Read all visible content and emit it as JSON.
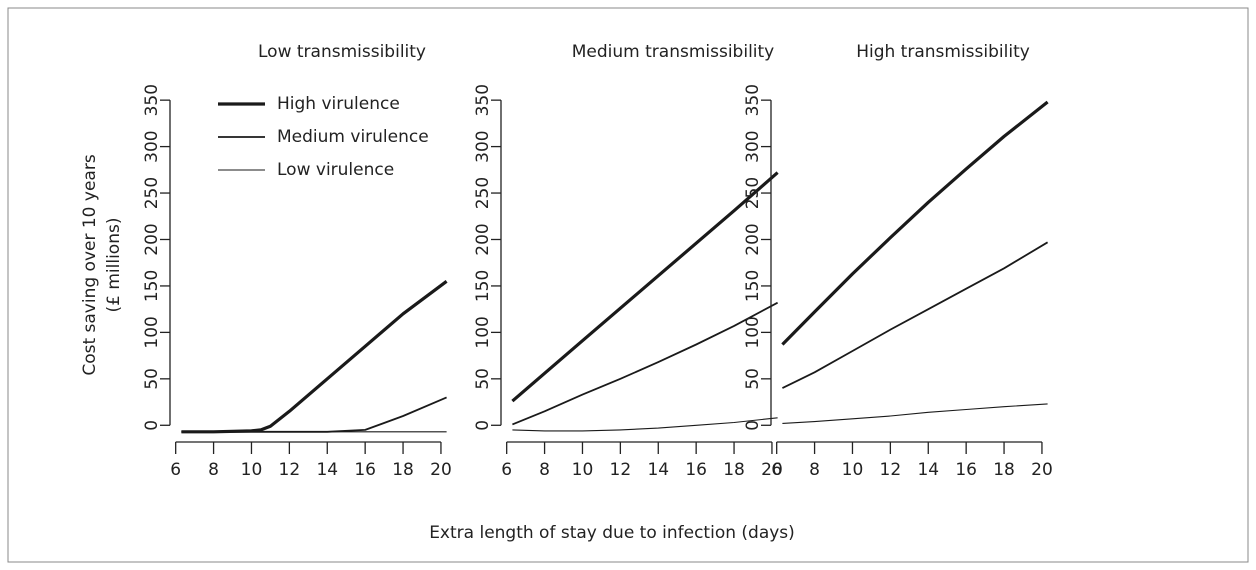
{
  "xlabel": "Extra length of stay due to infection (days)",
  "chart_data": [
    {
      "type": "line",
      "title": "Low transmissibility",
      "ylabel": [
        "Cost saving over 10 years",
        "(£ millions)"
      ],
      "legend": "top-left",
      "x": [
        6.3,
        8,
        10,
        10.5,
        11,
        12,
        14,
        16,
        18,
        20.3
      ],
      "series": [
        {
          "name": "High virulence",
          "color": "#1a1a1a",
          "width": 3.2,
          "values": [
            -7,
            -7,
            -6,
            -5,
            -1,
            15,
            50,
            85,
            120,
            155
          ]
        },
        {
          "name": "Medium virulence",
          "color": "#1a1a1a",
          "width": 1.8,
          "values": [
            -7,
            -7,
            -7,
            -7,
            -7,
            -7,
            -7,
            -5,
            10,
            30
          ]
        },
        {
          "name": "Low virulence",
          "color": "#1a1a1a",
          "width": 1.1,
          "values": [
            -7,
            -7,
            -7,
            -7,
            -7,
            -7,
            -7,
            -7,
            -7,
            -7
          ]
        }
      ],
      "xlim": [
        5.7,
        20.9
      ],
      "ylim": [
        -18,
        362
      ],
      "xticks": [
        6,
        8,
        10,
        12,
        14,
        16,
        18,
        20
      ],
      "yticks": [
        0,
        50,
        100,
        150,
        200,
        250,
        300,
        350
      ]
    },
    {
      "type": "line",
      "title": "Medium transmissibility",
      "x": [
        6.3,
        8,
        10,
        12,
        14,
        16,
        18,
        20.3
      ],
      "series": [
        {
          "color": "#1a1a1a",
          "width": 3.2,
          "values": [
            26,
            56,
            91,
            126,
            161,
            196,
            231,
            272
          ]
        },
        {
          "color": "#1a1a1a",
          "width": 1.8,
          "values": [
            1,
            15,
            33,
            50,
            68,
            87,
            107,
            132
          ]
        },
        {
          "color": "#1a1a1a",
          "width": 1.1,
          "values": [
            -5,
            -6,
            -6,
            -5,
            -3,
            0,
            3,
            8
          ]
        }
      ],
      "xlim": [
        5.7,
        20.9
      ],
      "ylim": [
        -18,
        362
      ],
      "xticks": [
        6,
        8,
        10,
        12,
        14,
        16,
        18,
        20
      ],
      "yticks": [
        0,
        50,
        100,
        150,
        200,
        250,
        300,
        350
      ]
    },
    {
      "type": "line",
      "title": "High transmissibility",
      "x": [
        6.3,
        8,
        10,
        12,
        14,
        16,
        18,
        20.3
      ],
      "series": [
        {
          "color": "#1a1a1a",
          "width": 3.2,
          "values": [
            87,
            122,
            163,
            202,
            240,
            276,
            311,
            348
          ]
        },
        {
          "color": "#1a1a1a",
          "width": 1.8,
          "values": [
            40,
            57,
            80,
            103,
            125,
            147,
            169,
            197
          ]
        },
        {
          "color": "#1a1a1a",
          "width": 1.1,
          "values": [
            2,
            4,
            7,
            10,
            14,
            17,
            20,
            23
          ]
        }
      ],
      "xlim": [
        5.7,
        20.9
      ],
      "ylim": [
        -18,
        362
      ],
      "xticks": [
        6,
        8,
        10,
        12,
        14,
        16,
        18,
        20
      ],
      "yticks": [
        0,
        50,
        100,
        150,
        200,
        250,
        300,
        350
      ]
    }
  ]
}
